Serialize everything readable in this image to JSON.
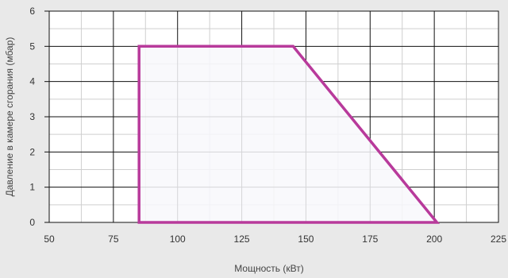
{
  "chart_data": {
    "type": "area",
    "title": "",
    "xlabel": "Мощность (кВт)",
    "ylabel": "Давление в камере сгорания (мбар)",
    "xlim": [
      50,
      225
    ],
    "ylim": [
      0,
      6
    ],
    "xticks": [
      50,
      75,
      100,
      125,
      150,
      175,
      200,
      225
    ],
    "yticks": [
      0,
      1,
      2,
      3,
      4,
      5,
      6
    ],
    "x_minor_step": 12.5,
    "y_minor_step": 0.5,
    "grid": true,
    "series": [
      {
        "x": [
          85,
          85,
          145,
          201,
          85
        ],
        "y": [
          0,
          5,
          5,
          0,
          0
        ]
      }
    ],
    "colors": {
      "background": "#e9e9e9",
      "plot_fill": "#ffffff",
      "region_fill": "#f8f8fb",
      "region_stroke": "#b83a9b",
      "grid_major": "#111111",
      "grid_minor": "#cfcfcf"
    }
  }
}
